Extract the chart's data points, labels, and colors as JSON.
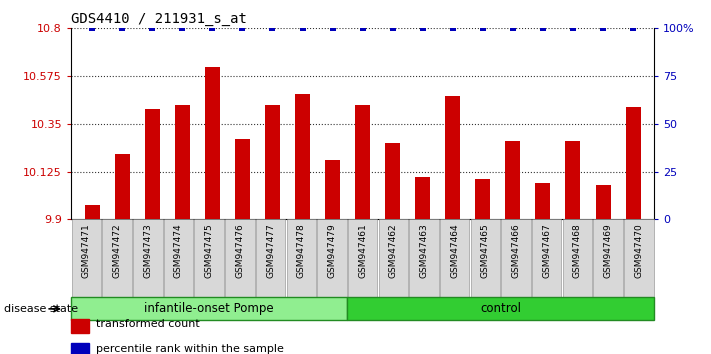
{
  "title": "GDS4410 / 211931_s_at",
  "samples": [
    "GSM947471",
    "GSM947472",
    "GSM947473",
    "GSM947474",
    "GSM947475",
    "GSM947476",
    "GSM947477",
    "GSM947478",
    "GSM947479",
    "GSM947461",
    "GSM947462",
    "GSM947463",
    "GSM947464",
    "GSM947465",
    "GSM947466",
    "GSM947467",
    "GSM947468",
    "GSM947469",
    "GSM947470"
  ],
  "bar_values": [
    9.97,
    10.21,
    10.42,
    10.44,
    10.62,
    10.28,
    10.44,
    10.49,
    10.18,
    10.44,
    10.26,
    10.1,
    10.48,
    10.09,
    10.27,
    10.07,
    10.27,
    10.06,
    10.43
  ],
  "percentile_values": [
    100,
    100,
    100,
    100,
    100,
    100,
    100,
    100,
    100,
    100,
    100,
    100,
    100,
    100,
    100,
    100,
    100,
    100,
    100
  ],
  "groups": [
    {
      "label": "infantile-onset Pompe",
      "start": 0,
      "end": 9,
      "color": "#90EE90",
      "border": "#228B22"
    },
    {
      "label": "control",
      "start": 9,
      "end": 19,
      "color": "#32CD32",
      "border": "#228B22"
    }
  ],
  "bar_color": "#CC0000",
  "percentile_color": "#0000BB",
  "ylim_left": [
    9.9,
    10.8
  ],
  "yticks_left": [
    9.9,
    10.125,
    10.35,
    10.575,
    10.8
  ],
  "ytick_labels_left": [
    "9.9",
    "10.125",
    "10.35",
    "10.575",
    "10.8"
  ],
  "ylim_right": [
    0,
    100
  ],
  "yticks_right": [
    0,
    25,
    50,
    75,
    100
  ],
  "ytick_labels_right": [
    "0",
    "25",
    "50",
    "75",
    "100%"
  ],
  "legend_items": [
    {
      "label": "transformed count",
      "color": "#CC0000"
    },
    {
      "label": "percentile rank within the sample",
      "color": "#0000BB"
    }
  ],
  "disease_state_label": "disease state"
}
